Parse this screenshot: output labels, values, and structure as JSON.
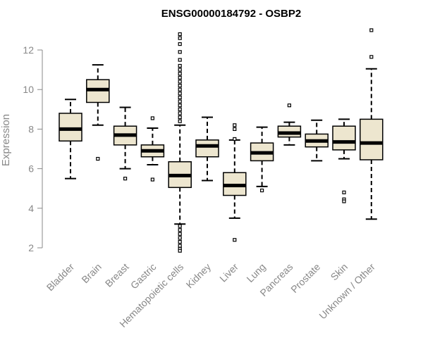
{
  "chart_data": {
    "type": "boxplot",
    "title": "ENSG00000184792 - OSBP2",
    "ylabel": "Expression",
    "xlabel": "",
    "ylim": [
      1.8,
      13.0
    ],
    "yticks": [
      2,
      4,
      6,
      8,
      10,
      12
    ],
    "box_fill": "#ede6cf",
    "axis_color": "#888888",
    "categories": [
      "Bladder",
      "Brain",
      "Breast",
      "Gastric",
      "Hematopoietic cells",
      "Kidney",
      "Liver",
      "Lung",
      "Pancreas",
      "Prostate",
      "Skin",
      "Unknown / Other"
    ],
    "boxes": [
      {
        "min": 5.5,
        "q1": 7.4,
        "median": 8.0,
        "q3": 8.8,
        "max": 9.5,
        "outliers": []
      },
      {
        "min": 8.2,
        "q1": 9.35,
        "median": 10.0,
        "q3": 10.5,
        "max": 11.25,
        "outliers": [
          6.5
        ]
      },
      {
        "min": 6.0,
        "q1": 7.2,
        "median": 7.7,
        "q3": 8.15,
        "max": 9.1,
        "outliers": [
          5.5
        ]
      },
      {
        "min": 6.2,
        "q1": 6.6,
        "median": 6.9,
        "q3": 7.2,
        "max": 8.05,
        "outliers": [
          8.55,
          5.45
        ]
      },
      {
        "min": 3.2,
        "q1": 5.05,
        "median": 5.65,
        "q3": 6.35,
        "max": 8.2,
        "outliers": [
          12.8,
          12.6,
          12.3,
          11.9,
          11.5,
          11.2,
          11.0,
          10.8,
          10.6,
          10.4,
          10.2,
          10.0,
          9.8,
          9.6,
          9.4,
          9.2,
          9.0,
          8.8,
          8.6,
          8.4,
          3.1,
          2.9,
          2.7,
          2.5,
          2.3,
          2.1,
          1.95,
          1.85
        ]
      },
      {
        "min": 5.4,
        "q1": 6.6,
        "median": 7.15,
        "q3": 7.45,
        "max": 8.6,
        "outliers": []
      },
      {
        "min": 3.5,
        "q1": 4.65,
        "median": 5.15,
        "q3": 5.8,
        "max": 7.45,
        "outliers": [
          8.2,
          8.0,
          7.5,
          2.4
        ]
      },
      {
        "min": 5.1,
        "q1": 6.4,
        "median": 6.8,
        "q3": 7.3,
        "max": 8.1,
        "outliers": [
          4.9
        ]
      },
      {
        "min": 7.2,
        "q1": 7.6,
        "median": 7.8,
        "q3": 8.15,
        "max": 8.35,
        "outliers": [
          9.2
        ]
      },
      {
        "min": 6.4,
        "q1": 7.1,
        "median": 7.4,
        "q3": 7.75,
        "max": 8.45,
        "outliers": []
      },
      {
        "min": 6.5,
        "q1": 6.95,
        "median": 7.35,
        "q3": 8.15,
        "max": 8.5,
        "outliers": [
          4.8,
          4.45,
          4.35
        ]
      },
      {
        "min": 3.45,
        "q1": 6.45,
        "median": 7.3,
        "q3": 8.5,
        "max": 11.05,
        "outliers": [
          13.0,
          11.65
        ]
      }
    ]
  }
}
